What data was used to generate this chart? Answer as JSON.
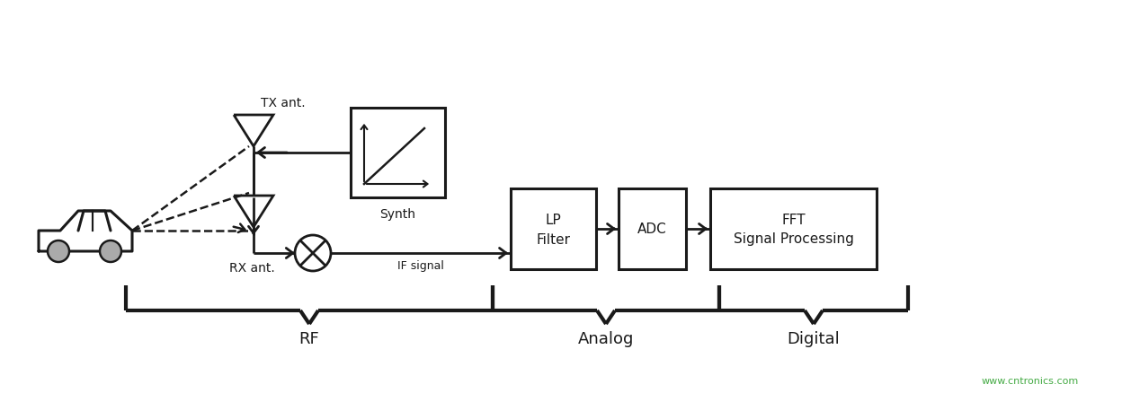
{
  "bg_color": "#ffffff",
  "line_color": "#1a1a1a",
  "fig_width": 12.68,
  "fig_height": 4.38,
  "watermark": "www.cntronics.com",
  "watermark_color": "#44aa44",
  "labels": {
    "tx_ant": "TX ant.",
    "rx_ant": "RX ant.",
    "synth": "Synth",
    "if_signal": "IF signal",
    "lp_filter_line1": "LP",
    "lp_filter_line2": "Filter",
    "adc": "ADC",
    "fft_line1": "FFT",
    "fft_line2": "Signal Processing",
    "rf": "RF",
    "analog": "Analog",
    "digital": "Digital"
  }
}
